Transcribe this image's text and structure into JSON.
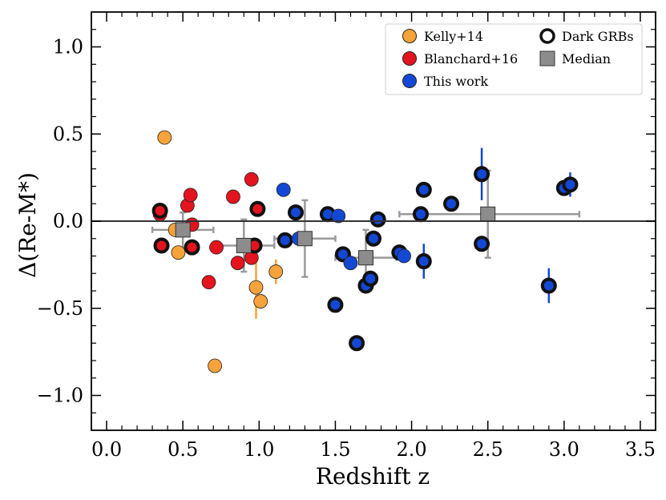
{
  "chart_data": {
    "type": "scatter",
    "xlabel": "Redshift z",
    "ylabel": "Δ(Re-M*)",
    "xlim": [
      -0.1,
      3.6
    ],
    "ylim": [
      -1.2,
      1.2
    ],
    "xticks": [
      "0.0",
      "0.5",
      "1.0",
      "1.5",
      "2.0",
      "2.5",
      "3.0",
      "3.5"
    ],
    "yticks": [
      "1.0",
      "0.5",
      "0.0",
      "−0.5",
      "−1.0"
    ],
    "xtick_values": [
      0.0,
      0.5,
      1.0,
      1.5,
      2.0,
      2.5,
      3.0,
      3.5
    ],
    "ytick_values": [
      1.0,
      0.5,
      0.0,
      -0.5,
      -1.0
    ],
    "reference_line_y": 0.0,
    "colors": {
      "kelly": "#f5a33a",
      "blanchard": "#e3141e",
      "this_work": "#1448d4",
      "median": "#8c8c8c",
      "median_err": "#9a9a9a",
      "dark_ring": "#111111"
    },
    "legend": {
      "position": "top-right",
      "entries": [
        {
          "key": "kelly",
          "label": "Kelly+14"
        },
        {
          "key": "blanchard",
          "label": "Blanchard+16"
        },
        {
          "key": "this_work",
          "label": "This work"
        },
        {
          "key": "dark",
          "label": "Dark GRBs"
        },
        {
          "key": "median",
          "label": "Median"
        }
      ]
    },
    "series": [
      {
        "name": "Kelly+14",
        "key": "kelly",
        "points": [
          {
            "x": 0.38,
            "y": 0.48
          },
          {
            "x": 0.45,
            "y": -0.05
          },
          {
            "x": 0.47,
            "y": -0.18
          },
          {
            "x": 0.71,
            "y": -0.83
          },
          {
            "x": 0.98,
            "y": -0.38,
            "yerr": 0.18
          },
          {
            "x": 1.01,
            "y": -0.46
          },
          {
            "x": 1.11,
            "y": -0.29,
            "yerr": 0.07
          }
        ]
      },
      {
        "name": "Blanchard+16",
        "key": "blanchard",
        "points": [
          {
            "x": 0.35,
            "y": 0.04
          },
          {
            "x": 0.35,
            "y": 0.06,
            "dark": true
          },
          {
            "x": 0.36,
            "y": -0.14,
            "dark": true
          },
          {
            "x": 0.53,
            "y": 0.09
          },
          {
            "x": 0.55,
            "y": 0.15
          },
          {
            "x": 0.56,
            "y": -0.02
          },
          {
            "x": 0.56,
            "y": -0.15,
            "dark": true
          },
          {
            "x": 0.67,
            "y": -0.35
          },
          {
            "x": 0.72,
            "y": -0.15
          },
          {
            "x": 0.83,
            "y": 0.14
          },
          {
            "x": 0.86,
            "y": -0.24
          },
          {
            "x": 0.95,
            "y": 0.24
          },
          {
            "x": 0.95,
            "y": -0.21
          },
          {
            "x": 0.97,
            "y": -0.14,
            "dark": true
          },
          {
            "x": 0.99,
            "y": 0.07,
            "dark": true
          }
        ]
      },
      {
        "name": "This work",
        "key": "this_work",
        "points": [
          {
            "x": 1.16,
            "y": 0.18
          },
          {
            "x": 1.17,
            "y": -0.11,
            "dark": true
          },
          {
            "x": 1.24,
            "y": 0.05,
            "dark": true
          },
          {
            "x": 1.26,
            "y": -0.1
          },
          {
            "x": 1.45,
            "y": 0.04,
            "dark": true
          },
          {
            "x": 1.52,
            "y": 0.03
          },
          {
            "x": 1.5,
            "y": -0.48,
            "dark": true
          },
          {
            "x": 1.55,
            "y": -0.19,
            "dark": true
          },
          {
            "x": 1.6,
            "y": -0.24
          },
          {
            "x": 1.64,
            "y": -0.7,
            "dark": true
          },
          {
            "x": 1.7,
            "y": -0.37,
            "dark": true
          },
          {
            "x": 1.73,
            "y": -0.33,
            "dark": true
          },
          {
            "x": 1.75,
            "y": -0.1,
            "dark": true
          },
          {
            "x": 1.78,
            "y": 0.01,
            "dark": true
          },
          {
            "x": 1.92,
            "y": -0.18,
            "dark": true
          },
          {
            "x": 1.95,
            "y": -0.2
          },
          {
            "x": 2.06,
            "y": 0.04,
            "dark": true
          },
          {
            "x": 2.08,
            "y": 0.18,
            "dark": true
          },
          {
            "x": 2.08,
            "y": -0.23,
            "dark": true,
            "yerr": 0.1
          },
          {
            "x": 2.26,
            "y": 0.1,
            "dark": true
          },
          {
            "x": 2.46,
            "y": 0.27,
            "dark": true,
            "yerr": 0.15
          },
          {
            "x": 2.46,
            "y": -0.13,
            "dark": true
          },
          {
            "x": 2.9,
            "y": -0.37,
            "dark": true,
            "yerr": 0.1
          },
          {
            "x": 3.0,
            "y": 0.19,
            "dark": true
          },
          {
            "x": 3.04,
            "y": 0.21,
            "dark": true,
            "yerr": 0.07
          }
        ]
      },
      {
        "name": "Median",
        "key": "median",
        "points": [
          {
            "x": 0.5,
            "y": -0.05,
            "xerr": [
              0.2,
              0.2
            ],
            "yerr": [
              0.1,
              0.1
            ]
          },
          {
            "x": 0.9,
            "y": -0.14,
            "xerr": [
              0.2,
              0.2
            ],
            "yerr": [
              0.15,
              0.15
            ]
          },
          {
            "x": 1.3,
            "y": -0.1,
            "xerr": [
              0.2,
              0.2
            ],
            "yerr": [
              0.22,
              0.22
            ]
          },
          {
            "x": 1.7,
            "y": -0.21,
            "xerr": [
              0.2,
              0.2
            ],
            "yerr": [
              0.16,
              0.16
            ]
          },
          {
            "x": 2.5,
            "y": 0.04,
            "xerr": [
              0.58,
              0.6
            ],
            "yerr": [
              0.25,
              0.25
            ]
          }
        ]
      }
    ]
  }
}
